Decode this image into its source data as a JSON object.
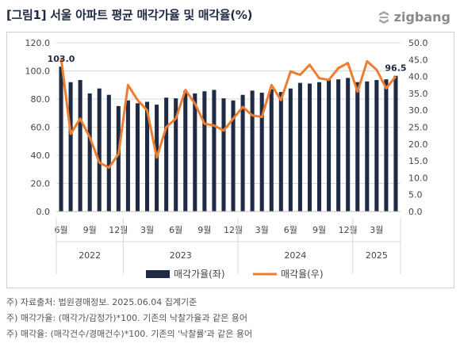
{
  "header": {
    "title": "[그림1] 서울 아파트 평균 매각가율 및 매각율(%)",
    "brand": "zigbang"
  },
  "notes": [
    "주) 자료출처: 법원경매정보. 2025.06.04 집계기준",
    "주) 매각가율: (매각가/감정가)*100. 기존의 낙찰가율과 같은 용어",
    "주) 매각율: (매각건수/경매건수)*100. 기존의 '낙찰률'과 같은 용어"
  ],
  "colors": {
    "bar": "#1f2a44",
    "line": "#ed7d31",
    "text": "#1f2a44"
  },
  "chart_data": {
    "type": "bar",
    "x": [
      "2022-06",
      "2022-07",
      "2022-08",
      "2022-09",
      "2022-10",
      "2022-11",
      "2022-12",
      "2023-01",
      "2023-02",
      "2023-03",
      "2023-04",
      "2023-05",
      "2023-06",
      "2023-07",
      "2023-08",
      "2023-09",
      "2023-10",
      "2023-11",
      "2023-12",
      "2024-01",
      "2024-02",
      "2024-03",
      "2024-04",
      "2024-05",
      "2024-06",
      "2024-07",
      "2024-08",
      "2024-09",
      "2024-10",
      "2024-11",
      "2024-12",
      "2025-01",
      "2025-02",
      "2025-03",
      "2025-04",
      "2025-05"
    ],
    "x_tick_labels": [
      {
        "x": "2022-06",
        "label": "6월"
      },
      {
        "x": "2022-09",
        "label": "9월"
      },
      {
        "x": "2022-12",
        "label": "12월"
      },
      {
        "x": "2023-03",
        "label": "3월"
      },
      {
        "x": "2023-06",
        "label": "6월"
      },
      {
        "x": "2023-09",
        "label": "9월"
      },
      {
        "x": "2023-12",
        "label": "12월"
      },
      {
        "x": "2024-03",
        "label": "3월"
      },
      {
        "x": "2024-06",
        "label": "6월"
      },
      {
        "x": "2024-09",
        "label": "9월"
      },
      {
        "x": "2024-12",
        "label": "12월"
      },
      {
        "x": "2025-03",
        "label": "3월"
      }
    ],
    "year_groups": [
      {
        "label": "2022",
        "start": "2022-06",
        "end": "2022-12"
      },
      {
        "label": "2023",
        "start": "2023-01",
        "end": "2023-12"
      },
      {
        "label": "2024",
        "start": "2024-01",
        "end": "2024-12"
      },
      {
        "label": "2025",
        "start": "2025-01",
        "end": "2025-05"
      }
    ],
    "series": [
      {
        "name": "매각가율(좌)",
        "type": "bar",
        "axis": "left",
        "values": [
          103.0,
          92.0,
          93.5,
          84.0,
          87.5,
          83.0,
          75.0,
          79.0,
          77.0,
          78.0,
          76.0,
          81.0,
          80.5,
          86.0,
          84.0,
          85.5,
          86.5,
          80.5,
          79.0,
          83.0,
          86.0,
          84.5,
          87.0,
          85.0,
          87.5,
          91.5,
          91.0,
          92.0,
          93.5,
          94.0,
          95.0,
          92.0,
          92.5,
          93.5,
          94.0,
          96.5
        ]
      },
      {
        "name": "매각율(우)",
        "type": "line",
        "axis": "right",
        "values": [
          45.5,
          23.0,
          27.5,
          22.0,
          14.5,
          13.0,
          17.0,
          37.5,
          33.0,
          30.0,
          16.0,
          25.0,
          27.5,
          36.0,
          32.0,
          26.0,
          25.5,
          24.0,
          27.5,
          31.0,
          28.5,
          28.0,
          37.5,
          33.0,
          41.5,
          40.5,
          43.5,
          39.5,
          39.0,
          42.5,
          44.0,
          35.5,
          44.5,
          42.0,
          36.5,
          40.0
        ]
      }
    ],
    "y_left": {
      "min": 0,
      "max": 120,
      "step": 20,
      "tick_labels": [
        "0.0",
        "20.0",
        "40.0",
        "60.0",
        "80.0",
        "100.0",
        "120.0"
      ]
    },
    "y_right": {
      "min": 0,
      "max": 50,
      "step": 5,
      "tick_labels": [
        "0.0",
        "5.0",
        "10.0",
        "15.0",
        "20.0",
        "25.0",
        "30.0",
        "35.0",
        "40.0",
        "45.0",
        "50.0"
      ]
    },
    "data_labels": [
      {
        "series": "매각가율(좌)",
        "x": "2022-06",
        "label": "103.0"
      },
      {
        "series": "매각가율(좌)",
        "x": "2025-05",
        "label": "96.5"
      }
    ],
    "grid": true,
    "legend": "bottom"
  }
}
